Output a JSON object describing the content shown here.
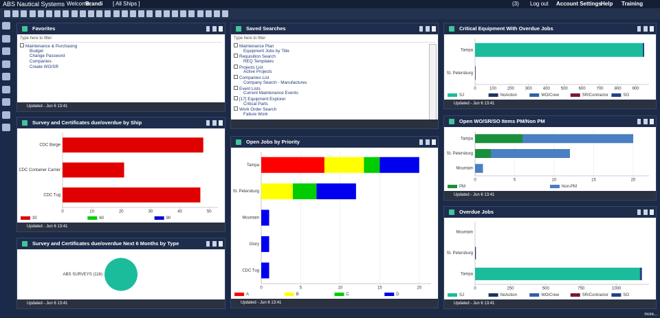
{
  "header": {
    "app": "ABS Nautical Systems",
    "welcome": "Welcome,",
    "user": "Brandi",
    "ship_filter": "[ All Ships ]",
    "cart": "(3)",
    "menu": [
      "Log out",
      "Account Settings",
      "Help",
      "Training"
    ]
  },
  "favorites": {
    "title": "Favorites",
    "filter": "Type here to filter",
    "items": [
      {
        "text": "Maintenance & Purchasing",
        "level": 0
      },
      {
        "text": "Budget",
        "level": 1
      },
      {
        "text": "Change Password",
        "level": 1
      },
      {
        "text": "Companies",
        "level": 1
      },
      {
        "text": "Create WO/SR",
        "level": 1
      }
    ]
  },
  "saved_searches": {
    "title": "Saved Searches",
    "filter": "Type here to filter",
    "items": [
      {
        "text": "Maintenance Plan",
        "level": 0
      },
      {
        "text": "Equipment Jobs by Title",
        "level": 1
      },
      {
        "text": "Requisition Search",
        "level": 0
      },
      {
        "text": "REQ Templates",
        "level": 1
      },
      {
        "text": "Projects List",
        "level": 0
      },
      {
        "text": "Active Projects",
        "level": 1
      },
      {
        "text": "Companies List",
        "level": 0
      },
      {
        "text": "Company Search - Manufactures",
        "level": 1
      },
      {
        "text": "Event Lists",
        "level": 0
      },
      {
        "text": "Current Maintenance Events",
        "level": 1
      },
      {
        "text": "[17] Equipment Explorer",
        "level": 0
      },
      {
        "text": "Critical Parts",
        "level": 1
      },
      {
        "text": "Work Order Search",
        "level": 0
      },
      {
        "text": "Failure Work",
        "level": 1
      }
    ]
  },
  "updated": "Updated - Jun 6 13:41",
  "more": "more...",
  "chart_data": [
    {
      "type": "bar",
      "title": "Survey and Certificates due/overdue by Ship",
      "categories": [
        "CDC Barge",
        "CDC Container Carrier",
        "CDC Tug"
      ],
      "series": [
        {
          "name": "30",
          "color": "#e00000",
          "values": [
            48,
            21,
            47
          ]
        },
        {
          "name": "60",
          "color": "#00d000",
          "values": [
            0,
            0,
            0
          ]
        },
        {
          "name": "90",
          "color": "#0000d0",
          "values": [
            0,
            0,
            0
          ]
        }
      ],
      "xlim": [
        0,
        53
      ],
      "xticks": [
        0,
        10,
        20,
        30,
        40,
        50
      ],
      "grid": false
    },
    {
      "type": "pie",
      "title": "Survey and Certificates due/overdue Next 6 Months by Type",
      "categories": [
        "ABS SURVEYS (116)"
      ],
      "values": [
        116
      ],
      "color": "#1abc9c"
    },
    {
      "type": "bar",
      "title": "Open Jobs by Priority",
      "categories": [
        "Tampa",
        "St. Petersburg",
        "Mountain",
        "Glory",
        "CDC Tug"
      ],
      "series": [
        {
          "name": "A",
          "color": "#ff0000",
          "values": [
            8,
            0,
            0,
            0,
            0
          ]
        },
        {
          "name": "B",
          "color": "#ffff00",
          "values": [
            5,
            4,
            0,
            0,
            0
          ]
        },
        {
          "name": "C",
          "color": "#00cc00",
          "values": [
            2,
            3,
            0,
            0,
            0
          ]
        },
        {
          "name": "D",
          "color": "#0000ee",
          "values": [
            5,
            5,
            1,
            1,
            1
          ]
        }
      ],
      "xlim": [
        0,
        21.5
      ],
      "xticks": [
        0,
        5,
        10,
        15,
        20
      ],
      "grid": true
    },
    {
      "type": "bar",
      "title": "Critical Equipment With Overdue Jobs",
      "categories": [
        "Tampa",
        "St. Petersburg"
      ],
      "series": [
        {
          "name": "SJ",
          "color": "#1abc9c",
          "values": [
            940,
            0
          ]
        },
        {
          "name": "NoAction",
          "color": "#1c3560",
          "values": [
            0,
            3
          ]
        },
        {
          "name": "WO/Crew",
          "color": "#2f5fa8",
          "values": [
            0,
            0
          ]
        },
        {
          "name": "SR/Contractor",
          "color": "#7a1838",
          "values": [
            0,
            0
          ]
        },
        {
          "name": "SO",
          "color": "#24408a",
          "values": [
            8,
            0
          ]
        }
      ],
      "xlim": [
        0,
        975
      ],
      "xticks": [
        0,
        100,
        200,
        300,
        400,
        500,
        600,
        700,
        800,
        900
      ],
      "grid": false
    },
    {
      "type": "bar",
      "title": "Open WO/SR/SO Items PM/Non PM",
      "categories": [
        "Tampa",
        "St. Petersburg",
        "Mountain"
      ],
      "series": [
        {
          "name": "PM",
          "color": "#1a8f3c",
          "values": [
            6,
            2,
            0
          ]
        },
        {
          "name": "Non-PM",
          "color": "#4a7fc1",
          "values": [
            14,
            10,
            1
          ]
        }
      ],
      "xlim": [
        0,
        22
      ],
      "xticks": [
        0,
        5,
        10,
        15,
        20
      ],
      "grid": true
    },
    {
      "type": "bar",
      "title": "Overdue Jobs",
      "categories": [
        "Mountain",
        "St. Petersburg",
        "Tampa"
      ],
      "series": [
        {
          "name": "SJ",
          "color": "#1abc9c",
          "values": [
            0,
            0,
            1165
          ]
        },
        {
          "name": "NoAction",
          "color": "#1c3560",
          "values": [
            0,
            6,
            0
          ]
        },
        {
          "name": "WO/Crew",
          "color": "#2f5fa8",
          "values": [
            0,
            0,
            0
          ]
        },
        {
          "name": "SR/Contractor",
          "color": "#7a1838",
          "values": [
            0,
            0,
            0
          ]
        },
        {
          "name": "SO",
          "color": "#24408a",
          "values": [
            0,
            0,
            15
          ]
        }
      ],
      "xlim": [
        0,
        1230
      ],
      "xticks": [
        0,
        250,
        500,
        750,
        1000
      ],
      "grid": false
    }
  ]
}
